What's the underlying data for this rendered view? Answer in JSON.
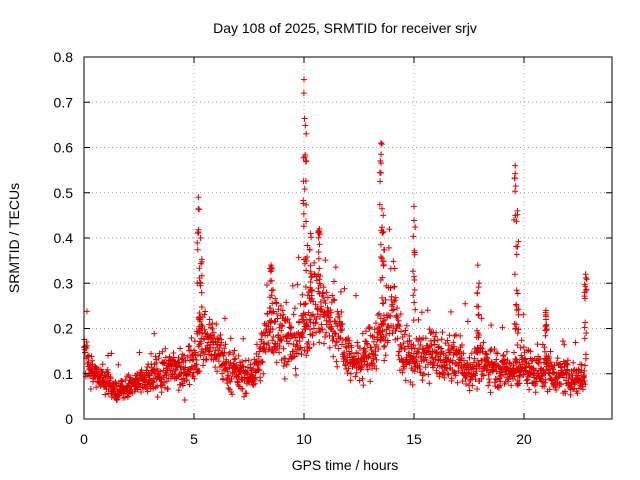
{
  "chart_data": {
    "type": "scatter",
    "title": "Day 108 of 2025, SRMTID for receiver srjv",
    "xlabel": "GPS time / hours",
    "ylabel": "SRMTID / TECUs",
    "xlim": [
      0,
      24
    ],
    "ylim": [
      0,
      0.8
    ],
    "xticks": [
      0,
      5,
      10,
      15,
      20
    ],
    "yticks": [
      0,
      0.1,
      0.2,
      0.3,
      0.4,
      0.5,
      0.6,
      0.7,
      0.8
    ],
    "xtick_labels": [
      "0",
      "5",
      "10",
      "15",
      "20"
    ],
    "ytick_labels": [
      "0",
      "0.1",
      "0.2",
      "0.3",
      "0.4",
      "0.5",
      "0.6",
      "0.7",
      "0.8"
    ],
    "grid": true,
    "marker": "plus",
    "color": "#e00000",
    "series": [
      {
        "name": "srjv",
        "x_range_hours": [
          0,
          22.8
        ],
        "baseline_profile": [
          [
            0.0,
            0.15
          ],
          [
            0.3,
            0.1
          ],
          [
            1.0,
            0.09
          ],
          [
            1.5,
            0.06
          ],
          [
            2.0,
            0.07
          ],
          [
            2.5,
            0.08
          ],
          [
            3.0,
            0.09
          ],
          [
            3.5,
            0.1
          ],
          [
            4.0,
            0.11
          ],
          [
            4.5,
            0.1
          ],
          [
            5.0,
            0.14
          ],
          [
            5.5,
            0.18
          ],
          [
            6.0,
            0.16
          ],
          [
            6.5,
            0.11
          ],
          [
            7.0,
            0.1
          ],
          [
            7.5,
            0.09
          ],
          [
            8.0,
            0.13
          ],
          [
            8.5,
            0.22
          ],
          [
            9.0,
            0.19
          ],
          [
            9.5,
            0.16
          ],
          [
            10.0,
            0.2
          ],
          [
            10.5,
            0.26
          ],
          [
            11.0,
            0.23
          ],
          [
            11.5,
            0.2
          ],
          [
            12.0,
            0.14
          ],
          [
            12.5,
            0.12
          ],
          [
            13.0,
            0.15
          ],
          [
            13.5,
            0.19
          ],
          [
            14.0,
            0.24
          ],
          [
            14.5,
            0.15
          ],
          [
            15.0,
            0.13
          ],
          [
            15.5,
            0.14
          ],
          [
            16.0,
            0.14
          ],
          [
            16.5,
            0.13
          ],
          [
            17.0,
            0.13
          ],
          [
            17.5,
            0.11
          ],
          [
            18.0,
            0.12
          ],
          [
            18.5,
            0.12
          ],
          [
            19.0,
            0.11
          ],
          [
            19.5,
            0.1
          ],
          [
            20.0,
            0.12
          ],
          [
            20.5,
            0.1
          ],
          [
            21.0,
            0.11
          ],
          [
            21.5,
            0.1
          ],
          [
            22.0,
            0.09
          ],
          [
            22.8,
            0.09
          ]
        ],
        "peaks": [
          [
            5.2,
            0.49
          ],
          [
            5.3,
            0.4
          ],
          [
            8.5,
            0.34
          ],
          [
            10.0,
            0.75
          ],
          [
            10.1,
            0.63
          ],
          [
            10.3,
            0.41
          ],
          [
            10.7,
            0.42
          ],
          [
            13.5,
            0.61
          ],
          [
            13.6,
            0.45
          ],
          [
            15.0,
            0.47
          ],
          [
            17.9,
            0.34
          ],
          [
            19.6,
            0.56
          ],
          [
            19.7,
            0.46
          ],
          [
            21.0,
            0.24
          ],
          [
            22.8,
            0.32
          ]
        ]
      }
    ]
  }
}
